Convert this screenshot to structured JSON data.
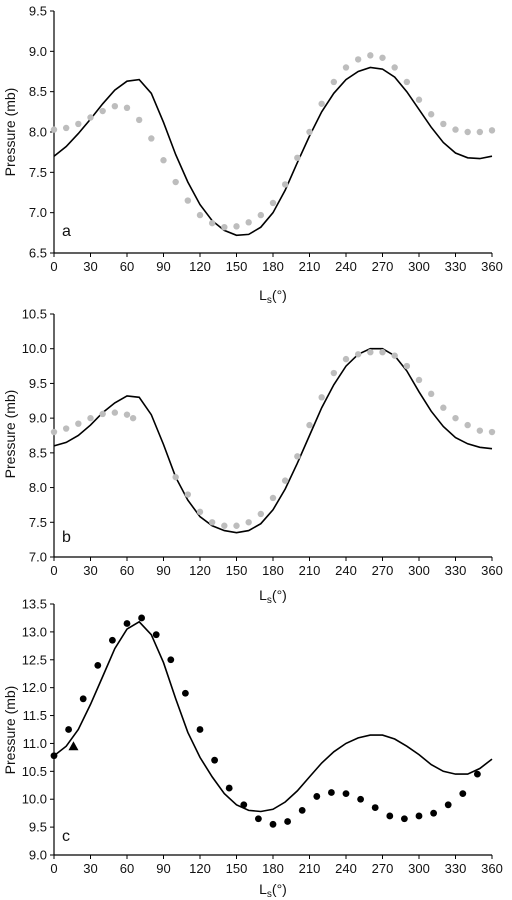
{
  "chart_data": [
    {
      "type": "line",
      "panel_label": "a",
      "ylabel": "Pressure (mb)",
      "xlabel_main": "L",
      "xlabel_sub": "s",
      "xlabel_tail": "(°)",
      "xlim": [
        0,
        360
      ],
      "ylim": [
        6.5,
        9.5
      ],
      "x_ticks": [
        "0",
        "30",
        "60",
        "90",
        "120",
        "150",
        "180",
        "210",
        "240",
        "270",
        "300",
        "330",
        "360"
      ],
      "y_ticks": [
        "6.5",
        "7.0",
        "7.5",
        "8.0",
        "8.5",
        "9.0",
        "9.5"
      ],
      "grid": false,
      "legend": "none",
      "series": [
        {
          "role": "model-curve",
          "style": "solid-black-line",
          "x": [
            0,
            10,
            20,
            30,
            40,
            50,
            60,
            70,
            80,
            90,
            100,
            110,
            120,
            130,
            140,
            150,
            160,
            170,
            180,
            190,
            200,
            210,
            220,
            230,
            240,
            250,
            260,
            270,
            280,
            290,
            300,
            310,
            320,
            330,
            340,
            350,
            360
          ],
          "y": [
            7.7,
            7.82,
            7.98,
            8.16,
            8.35,
            8.52,
            8.63,
            8.65,
            8.48,
            8.12,
            7.72,
            7.38,
            7.1,
            6.9,
            6.78,
            6.72,
            6.73,
            6.82,
            7.0,
            7.28,
            7.62,
            7.95,
            8.25,
            8.48,
            8.65,
            8.75,
            8.8,
            8.78,
            8.68,
            8.5,
            8.28,
            8.06,
            7.87,
            7.74,
            7.68,
            7.67,
            7.7
          ]
        },
        {
          "role": "observations",
          "style": "gray-dots",
          "x": [
            0,
            10,
            20,
            30,
            40,
            50,
            60,
            70,
            80,
            90,
            100,
            110,
            120,
            130,
            140,
            150,
            160,
            170,
            180,
            190,
            200,
            210,
            220,
            230,
            240,
            250,
            260,
            270,
            280,
            290,
            300,
            310,
            320,
            330,
            340,
            350,
            360
          ],
          "y": [
            8.03,
            8.05,
            8.1,
            8.18,
            8.26,
            8.32,
            8.3,
            8.15,
            7.92,
            7.65,
            7.38,
            7.15,
            6.97,
            6.87,
            6.82,
            6.83,
            6.88,
            6.97,
            7.12,
            7.35,
            7.68,
            8.0,
            8.35,
            8.62,
            8.8,
            8.9,
            8.95,
            8.92,
            8.8,
            8.62,
            8.4,
            8.22,
            8.1,
            8.03,
            8.0,
            8.0,
            8.02
          ]
        }
      ]
    },
    {
      "type": "line",
      "panel_label": "b",
      "ylabel": "Pressure (mb)",
      "xlabel_main": "L",
      "xlabel_sub": "s",
      "xlabel_tail": "(°)",
      "xlim": [
        0,
        360
      ],
      "ylim": [
        7.0,
        10.5
      ],
      "x_ticks": [
        "0",
        "30",
        "60",
        "90",
        "120",
        "150",
        "180",
        "210",
        "240",
        "270",
        "300",
        "330",
        "360"
      ],
      "y_ticks": [
        "7.0",
        "7.5",
        "8.0",
        "8.5",
        "9.0",
        "9.5",
        "10.0",
        "10.5"
      ],
      "grid": false,
      "legend": "none",
      "series": [
        {
          "role": "model-curve",
          "style": "solid-black-line",
          "x": [
            0,
            10,
            20,
            30,
            40,
            50,
            60,
            70,
            80,
            90,
            100,
            110,
            120,
            130,
            140,
            150,
            160,
            170,
            180,
            190,
            200,
            210,
            220,
            230,
            240,
            250,
            260,
            270,
            280,
            290,
            300,
            310,
            320,
            330,
            340,
            350,
            360
          ],
          "y": [
            8.6,
            8.65,
            8.75,
            8.9,
            9.08,
            9.22,
            9.32,
            9.3,
            9.05,
            8.62,
            8.15,
            7.82,
            7.58,
            7.45,
            7.38,
            7.35,
            7.38,
            7.48,
            7.68,
            7.98,
            8.35,
            8.75,
            9.15,
            9.48,
            9.75,
            9.92,
            10.0,
            10.0,
            9.9,
            9.68,
            9.38,
            9.1,
            8.88,
            8.72,
            8.63,
            8.58,
            8.56
          ]
        },
        {
          "role": "observations",
          "style": "gray-dots",
          "x": [
            0,
            10,
            20,
            30,
            40,
            50,
            60,
            65,
            100,
            110,
            120,
            130,
            140,
            150,
            160,
            170,
            180,
            190,
            200,
            210,
            220,
            230,
            240,
            250,
            260,
            270,
            280,
            290,
            300,
            310,
            320,
            330,
            340,
            350,
            360
          ],
          "y": [
            8.8,
            8.85,
            8.92,
            9.0,
            9.06,
            9.08,
            9.05,
            9.0,
            8.15,
            7.9,
            7.65,
            7.5,
            7.45,
            7.45,
            7.5,
            7.62,
            7.85,
            8.1,
            8.45,
            8.9,
            9.3,
            9.65,
            9.85,
            9.92,
            9.95,
            9.95,
            9.9,
            9.75,
            9.55,
            9.35,
            9.15,
            9.0,
            8.9,
            8.82,
            8.8
          ]
        }
      ]
    },
    {
      "type": "line",
      "panel_label": "c",
      "ylabel": "Pressure (mb)",
      "xlabel_main": "L",
      "xlabel_sub": "s",
      "xlabel_tail": "(°)",
      "xlim": [
        0,
        360
      ],
      "ylim": [
        9.0,
        13.5
      ],
      "x_ticks": [
        "0",
        "30",
        "60",
        "90",
        "120",
        "150",
        "180",
        "210",
        "240",
        "270",
        "300",
        "330",
        "360"
      ],
      "y_ticks": [
        "9.0",
        "9.5",
        "10.0",
        "10.5",
        "11.0",
        "11.5",
        "12.0",
        "12.5",
        "13.0",
        "13.5"
      ],
      "grid": false,
      "legend": "none",
      "series": [
        {
          "role": "model-curve",
          "style": "solid-black-line",
          "x": [
            0,
            10,
            20,
            30,
            40,
            50,
            60,
            70,
            80,
            90,
            100,
            110,
            120,
            130,
            140,
            150,
            160,
            170,
            180,
            190,
            200,
            210,
            220,
            230,
            240,
            250,
            260,
            270,
            280,
            290,
            300,
            310,
            320,
            330,
            340,
            350,
            360
          ],
          "y": [
            10.78,
            10.95,
            11.25,
            11.7,
            12.2,
            12.7,
            13.05,
            13.18,
            12.95,
            12.45,
            11.8,
            11.2,
            10.75,
            10.4,
            10.1,
            9.9,
            9.8,
            9.78,
            9.82,
            9.95,
            10.15,
            10.4,
            10.65,
            10.85,
            11.0,
            11.1,
            11.15,
            11.15,
            11.08,
            10.95,
            10.8,
            10.62,
            10.5,
            10.45,
            10.45,
            10.55,
            10.72
          ]
        },
        {
          "role": "observations",
          "style": "black-dots",
          "x": [
            0,
            12,
            24,
            36,
            48,
            60,
            72,
            84,
            96,
            108,
            120,
            132,
            144,
            156,
            168,
            180,
            192,
            204,
            216,
            228,
            240,
            252,
            264,
            276,
            288,
            300,
            312,
            324,
            336,
            348
          ],
          "y": [
            10.78,
            11.25,
            11.8,
            12.4,
            12.85,
            13.15,
            13.25,
            12.95,
            12.5,
            11.9,
            11.25,
            10.7,
            10.2,
            9.9,
            9.65,
            9.55,
            9.6,
            9.8,
            10.05,
            10.12,
            10.1,
            10.0,
            9.85,
            9.7,
            9.65,
            9.7,
            9.75,
            9.9,
            10.1,
            10.45
          ]
        },
        {
          "role": "single-observation",
          "style": "black-triangle",
          "x": [
            16
          ],
          "y": [
            10.95
          ]
        }
      ]
    }
  ]
}
